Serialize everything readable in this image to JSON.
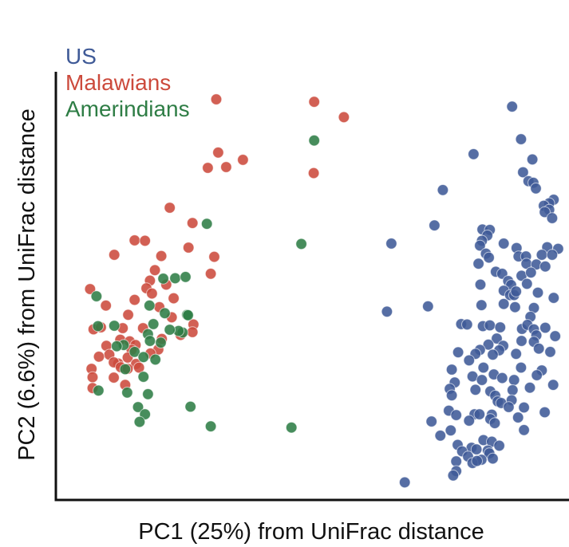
{
  "chart_data": {
    "type": "scatter",
    "xlabel": "PC1 (25%) from UniFrac distance",
    "ylabel": "PC2 (6.6%) from UniFrac distance",
    "xlim": [
      0,
      100
    ],
    "ylim": [
      0,
      100
    ],
    "grid": false,
    "ticks": false,
    "legend_position": "top-left",
    "series": [
      {
        "name": "US",
        "color": "#3f5a97",
        "points": [
          [
            90.6,
            95.3
          ],
          [
            92.4,
            87.2
          ],
          [
            82.8,
            83.5
          ],
          [
            94.7,
            82.2
          ],
          [
            92.8,
            79.0
          ],
          [
            93.9,
            76.8
          ],
          [
            94.9,
            76.4
          ],
          [
            95.4,
            75.0
          ],
          [
            76.6,
            74.6
          ],
          [
            99.0,
            72.2
          ],
          [
            98.1,
            71.3
          ],
          [
            97.0,
            70.7
          ],
          [
            98.1,
            69.7
          ],
          [
            97.2,
            69.1
          ],
          [
            98.7,
            67.6
          ],
          [
            74.9,
            65.8
          ],
          [
            84.6,
            64.8
          ],
          [
            86.1,
            64.7
          ],
          [
            85.6,
            63.3
          ],
          [
            84.5,
            62.0
          ],
          [
            84.1,
            60.8
          ],
          [
            66.2,
            61.3
          ],
          [
            88.9,
            61.3
          ],
          [
            91.5,
            60.2
          ],
          [
            97.7,
            60.4
          ],
          [
            99.9,
            60.0
          ],
          [
            85.3,
            58.8
          ],
          [
            85.9,
            57.8
          ],
          [
            91.9,
            58.1
          ],
          [
            93.4,
            58.1
          ],
          [
            96.6,
            58.5
          ],
          [
            98.7,
            58.5
          ],
          [
            93.5,
            56.3
          ],
          [
            95.5,
            56.1
          ],
          [
            83.8,
            56.3
          ],
          [
            87.3,
            54.3
          ],
          [
            88.6,
            53.8
          ],
          [
            92.5,
            53.3
          ],
          [
            94.4,
            54.1
          ],
          [
            97.3,
            55.6
          ],
          [
            89.8,
            52.0
          ],
          [
            84.2,
            51.1
          ],
          [
            90.4,
            51.0
          ],
          [
            93.6,
            51.3
          ],
          [
            88.9,
            49.6
          ],
          [
            90.2,
            48.5
          ],
          [
            91.0,
            48.5
          ],
          [
            91.4,
            49.4
          ],
          [
            95.8,
            49.1
          ],
          [
            65.3,
            44.4
          ],
          [
            73.6,
            45.7
          ],
          [
            84.4,
            46.0
          ],
          [
            88.9,
            46.3
          ],
          [
            91.2,
            45.5
          ],
          [
            95.0,
            45.3
          ],
          [
            99.0,
            47.8
          ],
          [
            94.3,
            43.1
          ],
          [
            80.3,
            41.3
          ],
          [
            81.5,
            41.2
          ],
          [
            84.7,
            40.8
          ],
          [
            86.1,
            41.0
          ],
          [
            88.2,
            40.5
          ],
          [
            92.6,
            40.1
          ],
          [
            93.7,
            41.1
          ],
          [
            95.0,
            40.0
          ],
          [
            97.3,
            40.4
          ],
          [
            95.5,
            38.5
          ],
          [
            87.5,
            37.7
          ],
          [
            92.5,
            37.1
          ],
          [
            95.0,
            36.9
          ],
          [
            99.3,
            38.3
          ],
          [
            85.8,
            36.2
          ],
          [
            88.8,
            35.9
          ],
          [
            84.1,
            34.9
          ],
          [
            79.7,
            34.3
          ],
          [
            88.0,
            34.8
          ],
          [
            96.0,
            35.2
          ],
          [
            83.2,
            33.9
          ],
          [
            86.7,
            33.7
          ],
          [
            81.9,
            32.3
          ],
          [
            91.4,
            33.9
          ],
          [
            98.3,
            34.4
          ],
          [
            78.4,
            30.0
          ],
          [
            84.8,
            30.5
          ],
          [
            92.4,
            30.5
          ],
          [
            96.6,
            29.8
          ],
          [
            82.6,
            28.3
          ],
          [
            86.9,
            28.8
          ],
          [
            88.6,
            27.9
          ],
          [
            95.6,
            28.6
          ],
          [
            79.0,
            26.8
          ],
          [
            84.5,
            27.4
          ],
          [
            91.0,
            27.4
          ],
          [
            94.2,
            25.5
          ],
          [
            78.0,
            25.2
          ],
          [
            83.2,
            25.0
          ],
          [
            90.7,
            24.9
          ],
          [
            86.2,
            24.6
          ],
          [
            87.2,
            23.5
          ],
          [
            98.9,
            26.2
          ],
          [
            78.4,
            23.6
          ],
          [
            87.7,
            22.1
          ],
          [
            90.5,
            22.4
          ],
          [
            88.4,
            21.7
          ],
          [
            89.9,
            20.7
          ],
          [
            93.0,
            20.6
          ],
          [
            77.8,
            19.8
          ],
          [
            79.3,
            18.7
          ],
          [
            83.0,
            18.9
          ],
          [
            86.5,
            18.8
          ],
          [
            91.8,
            18.1
          ],
          [
            74.3,
            17.1
          ],
          [
            81.9,
            17.3
          ],
          [
            84.0,
            18.9
          ],
          [
            86.2,
            17.7
          ],
          [
            87.1,
            16.7
          ],
          [
            97.2,
            19.4
          ],
          [
            93.0,
            15.0
          ],
          [
            78.2,
            14.9
          ],
          [
            76.1,
            13.6
          ],
          [
            84.8,
            12.5
          ],
          [
            79.6,
            11.3
          ],
          [
            86.5,
            12.1
          ],
          [
            82.4,
            10.6
          ],
          [
            80.5,
            9.7
          ],
          [
            83.4,
            10.2
          ],
          [
            85.7,
            9.9
          ],
          [
            88.0,
            11.1
          ],
          [
            81.7,
            8.4
          ],
          [
            79.3,
            7.2
          ],
          [
            86.0,
            9.2
          ],
          [
            86.7,
            7.9
          ],
          [
            84.4,
            7.6
          ],
          [
            82.6,
            6.8
          ],
          [
            83.5,
            7.3
          ],
          [
            79.3,
            4.8
          ],
          [
            78.7,
            3.7
          ],
          [
            68.9,
            2.0
          ]
        ]
      },
      {
        "name": "Malawians",
        "color": "#cc4a3c",
        "points": [
          [
            30.8,
            97.1
          ],
          [
            50.6,
            96.5
          ],
          [
            56.6,
            92.7
          ],
          [
            31.2,
            83.9
          ],
          [
            36.2,
            82.1
          ],
          [
            29.1,
            80.1
          ],
          [
            32.8,
            80.3
          ],
          [
            50.5,
            78.8
          ],
          [
            21.4,
            70.2
          ],
          [
            26.0,
            66.4
          ],
          [
            14.3,
            62.1
          ],
          [
            16.4,
            62.0
          ],
          [
            10.2,
            58.5
          ],
          [
            19.7,
            58.2
          ],
          [
            30.4,
            58.0
          ],
          [
            18.4,
            54.7
          ],
          [
            29.7,
            53.8
          ],
          [
            17.4,
            52.1
          ],
          [
            20.7,
            51.1
          ],
          [
            16.7,
            50.2
          ],
          [
            5.3,
            50.0
          ],
          [
            17.8,
            48.9
          ],
          [
            14.3,
            47.3
          ],
          [
            19.3,
            45.5
          ],
          [
            22.2,
            47.7
          ],
          [
            8.5,
            45.9
          ],
          [
            21.8,
            43.0
          ],
          [
            13.0,
            43.6
          ],
          [
            26.2,
            41.2
          ],
          [
            11.9,
            40.3
          ],
          [
            16.0,
            40.3
          ],
          [
            6.0,
            40.0
          ],
          [
            7.5,
            40.5
          ],
          [
            11.4,
            37.4
          ],
          [
            13.3,
            37.0
          ],
          [
            14.5,
            36.1
          ],
          [
            19.8,
            37.6
          ],
          [
            23.6,
            38.6
          ],
          [
            26.0,
            39.3
          ],
          [
            8.6,
            35.9
          ],
          [
            13.7,
            34.9
          ],
          [
            19.1,
            35.0
          ],
          [
            17.5,
            34.0
          ],
          [
            9.2,
            33.7
          ],
          [
            7.1,
            33.2
          ],
          [
            12.9,
            33.0
          ],
          [
            11.0,
            31.5
          ],
          [
            10.1,
            31.8
          ],
          [
            14.6,
            31.4
          ],
          [
            11.5,
            30.6
          ],
          [
            5.6,
            30.2
          ],
          [
            12.9,
            30.2
          ],
          [
            15.2,
            30.5
          ],
          [
            10.1,
            28.0
          ],
          [
            5.8,
            28.1
          ],
          [
            12.4,
            26.2
          ],
          [
            5.8,
            25.4
          ],
          [
            25.2,
            60.3
          ]
        ]
      },
      {
        "name": "Amerindians",
        "color": "#2e7d45",
        "points": [
          [
            50.6,
            86.9
          ],
          [
            28.9,
            66.2
          ],
          [
            48.0,
            61.2
          ],
          [
            20.1,
            52.6
          ],
          [
            22.5,
            52.7
          ],
          [
            24.6,
            53.0
          ],
          [
            6.6,
            48.2
          ],
          [
            17.3,
            45.9
          ],
          [
            24.9,
            43.6
          ],
          [
            25.1,
            43.5
          ],
          [
            20.4,
            44.0
          ],
          [
            18.1,
            41.3
          ],
          [
            10.2,
            40.9
          ],
          [
            6.9,
            40.8
          ],
          [
            24.0,
            39.2
          ],
          [
            23.2,
            39.6
          ],
          [
            21.4,
            39.9
          ],
          [
            17.0,
            38.8
          ],
          [
            17.4,
            37.1
          ],
          [
            19.6,
            36.7
          ],
          [
            12.1,
            36.1
          ],
          [
            10.7,
            35.8
          ],
          [
            14.3,
            34.4
          ],
          [
            16.1,
            33.1
          ],
          [
            18.5,
            32.5
          ],
          [
            12.4,
            30.1
          ],
          [
            16.1,
            28.2
          ],
          [
            7.0,
            24.8
          ],
          [
            12.8,
            24.3
          ],
          [
            17.0,
            23.9
          ],
          [
            15.0,
            20.7
          ],
          [
            25.6,
            20.8
          ],
          [
            16.4,
            18.9
          ],
          [
            15.3,
            17.0
          ],
          [
            29.7,
            15.9
          ],
          [
            46.0,
            15.6
          ]
        ]
      }
    ]
  }
}
